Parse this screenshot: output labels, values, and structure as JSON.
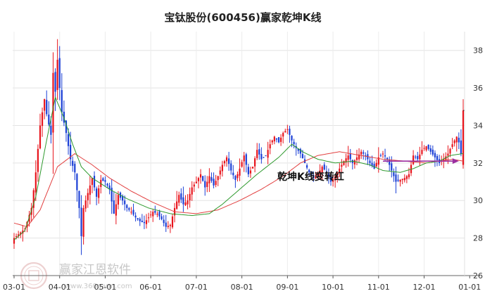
{
  "chart_data": {
    "type": "candlestick",
    "title": "宝钛股份(600456)赢家乾坤K线",
    "annotation": "乾坤K线变转红",
    "watermark": "赢家江恩软件",
    "watermark_url": "www.360gann.com",
    "xlabel": "",
    "ylabel": "",
    "ylim": [
      26,
      39
    ],
    "y_ticks": [
      26,
      28,
      30,
      32,
      34,
      36,
      38
    ],
    "x_tick_labels": [
      "03-01",
      "04-01",
      "05-01",
      "06-01",
      "07-01",
      "08-01",
      "09-01",
      "10-01",
      "11-01",
      "12-01",
      "01-01"
    ],
    "last_close": 34.8,
    "grid": true,
    "colors": {
      "up": "#e8141c",
      "down": "#1a3fd6",
      "ma_short": "#2e9a2e",
      "ma_long": "#e24040",
      "arrow": "#9b2fa0"
    },
    "ma_short_anchors": [
      [
        0,
        27.9
      ],
      [
        5,
        28.4
      ],
      [
        10,
        30.2
      ],
      [
        15,
        33.2
      ],
      [
        19,
        35.5
      ],
      [
        23,
        34.4
      ],
      [
        27,
        33.0
      ],
      [
        31,
        31.8
      ],
      [
        36,
        31.2
      ],
      [
        44,
        30.6
      ],
      [
        52,
        30.1
      ],
      [
        62,
        29.6
      ],
      [
        72,
        29.3
      ],
      [
        82,
        29.2
      ],
      [
        90,
        29.3
      ],
      [
        96,
        29.8
      ],
      [
        104,
        30.6
      ],
      [
        112,
        31.4
      ],
      [
        122,
        32.3
      ],
      [
        128,
        33.0
      ],
      [
        133,
        32.6
      ],
      [
        140,
        32.2
      ],
      [
        148,
        32.0
      ],
      [
        156,
        32.1
      ],
      [
        164,
        31.9
      ],
      [
        170,
        31.6
      ],
      [
        178,
        31.5
      ],
      [
        184,
        31.7
      ],
      [
        190,
        32.0
      ],
      [
        196,
        32.1
      ],
      [
        201,
        32.4
      ],
      [
        207,
        32.5
      ]
    ],
    "ma_long_anchors": [
      [
        0,
        28.8
      ],
      [
        6,
        28.6
      ],
      [
        12,
        29.5
      ],
      [
        20,
        31.8
      ],
      [
        28,
        32.5
      ],
      [
        36,
        31.9
      ],
      [
        44,
        31.2
      ],
      [
        54,
        30.5
      ],
      [
        64,
        29.9
      ],
      [
        74,
        29.4
      ],
      [
        84,
        29.3
      ],
      [
        94,
        29.5
      ],
      [
        104,
        30.0
      ],
      [
        114,
        30.6
      ],
      [
        124,
        31.3
      ],
      [
        132,
        32.0
      ],
      [
        140,
        32.4
      ],
      [
        150,
        32.6
      ],
      [
        160,
        32.4
      ],
      [
        170,
        32.2
      ],
      [
        180,
        32.1
      ],
      [
        190,
        32.0
      ],
      [
        196,
        32.1
      ],
      [
        202,
        32.2
      ],
      [
        207,
        32.1
      ]
    ],
    "close_path_anchors": [
      [
        0,
        28.0
      ],
      [
        5,
        28.5
      ],
      [
        8,
        29.6
      ],
      [
        10,
        31.5
      ],
      [
        12,
        34.0
      ],
      [
        14,
        35.4
      ],
      [
        15,
        34.6
      ],
      [
        17,
        33.5
      ],
      [
        18,
        36.8
      ],
      [
        19,
        35.8
      ],
      [
        20,
        37.5
      ],
      [
        21,
        36.0
      ],
      [
        22,
        34.7
      ],
      [
        24,
        33.6
      ],
      [
        26,
        32.2
      ],
      [
        28,
        31.5
      ],
      [
        30,
        29.6
      ],
      [
        31,
        28.1
      ],
      [
        32,
        29.6
      ],
      [
        34,
        30.4
      ],
      [
        36,
        31.2
      ],
      [
        38,
        30.2
      ],
      [
        40,
        31.1
      ],
      [
        42,
        31.0
      ],
      [
        44,
        30.6
      ],
      [
        46,
        29.3
      ],
      [
        48,
        30.3
      ],
      [
        50,
        30.0
      ],
      [
        52,
        29.6
      ],
      [
        54,
        29.4
      ],
      [
        56,
        29.1
      ],
      [
        58,
        28.9
      ],
      [
        60,
        28.8
      ],
      [
        62,
        29.1
      ],
      [
        64,
        29.4
      ],
      [
        66,
        29.3
      ],
      [
        68,
        29.0
      ],
      [
        70,
        28.6
      ],
      [
        72,
        28.7
      ],
      [
        74,
        29.6
      ],
      [
        76,
        30.3
      ],
      [
        78,
        29.8
      ],
      [
        80,
        30.0
      ],
      [
        82,
        30.7
      ],
      [
        84,
        31.0
      ],
      [
        86,
        31.4
      ],
      [
        88,
        30.7
      ],
      [
        90,
        31.3
      ],
      [
        92,
        30.8
      ],
      [
        94,
        31.3
      ],
      [
        96,
        31.9
      ],
      [
        98,
        32.3
      ],
      [
        100,
        31.6
      ],
      [
        102,
        31.1
      ],
      [
        104,
        31.7
      ],
      [
        106,
        32.4
      ],
      [
        108,
        31.4
      ],
      [
        110,
        31.8
      ],
      [
        112,
        32.7
      ],
      [
        114,
        32.2
      ],
      [
        116,
        32.4
      ],
      [
        118,
        33.0
      ],
      [
        120,
        33.4
      ],
      [
        122,
        33.1
      ],
      [
        124,
        33.6
      ],
      [
        126,
        33.8
      ],
      [
        128,
        33.2
      ],
      [
        130,
        32.8
      ],
      [
        132,
        32.5
      ],
      [
        134,
        32.0
      ],
      [
        136,
        31.5
      ],
      [
        138,
        31.2
      ],
      [
        140,
        31.4
      ],
      [
        142,
        31.8
      ],
      [
        144,
        31.5
      ],
      [
        146,
        31.0
      ],
      [
        148,
        31.3
      ],
      [
        150,
        31.7
      ],
      [
        152,
        32.1
      ],
      [
        154,
        32.4
      ],
      [
        156,
        32.0
      ],
      [
        158,
        32.3
      ],
      [
        160,
        32.6
      ],
      [
        162,
        32.4
      ],
      [
        164,
        32.0
      ],
      [
        166,
        31.7
      ],
      [
        168,
        32.3
      ],
      [
        170,
        32.5
      ],
      [
        172,
        32.2
      ],
      [
        174,
        31.6
      ],
      [
        176,
        31.0
      ],
      [
        178,
        31.1
      ],
      [
        180,
        31.2
      ],
      [
        182,
        31.4
      ],
      [
        184,
        32.4
      ],
      [
        186,
        32.2
      ],
      [
        188,
        32.7
      ],
      [
        190,
        32.9
      ],
      [
        192,
        32.6
      ],
      [
        194,
        32.3
      ],
      [
        196,
        32.0
      ],
      [
        198,
        32.2
      ],
      [
        200,
        32.5
      ],
      [
        202,
        33.0
      ],
      [
        204,
        33.4
      ],
      [
        205,
        33.1
      ],
      [
        206,
        32.5
      ],
      [
        207,
        34.8
      ]
    ]
  }
}
